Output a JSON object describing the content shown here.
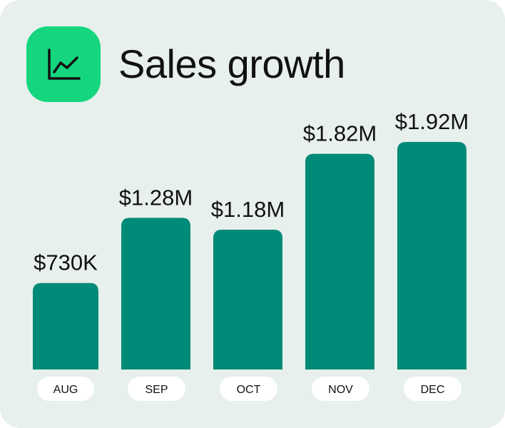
{
  "header": {
    "icon": "line-chart-icon",
    "icon_color": "#15d67f"
  },
  "chart_data": {
    "type": "bar",
    "title": "Sales growth",
    "categories": [
      "AUG",
      "SEP",
      "OCT",
      "NOV",
      "DEC"
    ],
    "values": [
      730000,
      1280000,
      1180000,
      1820000,
      1920000
    ],
    "value_labels": [
      "$730K",
      "$1.28M",
      "$1.18M",
      "$1.82M",
      "$1.92M"
    ],
    "bar_color": "#008a78",
    "grid": false,
    "legend": "none"
  }
}
